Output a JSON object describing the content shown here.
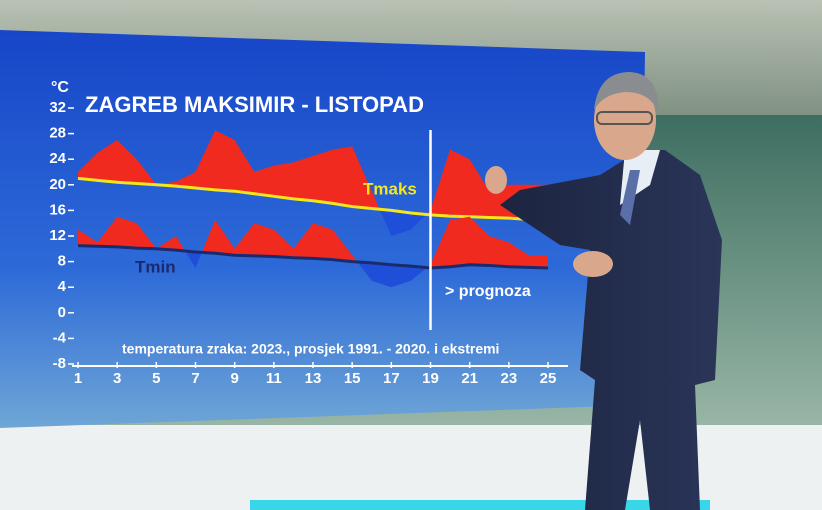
{
  "chart_data": {
    "type": "line",
    "title": "ZAGREB MAKSIMIR - LISTOPAD",
    "unit": "°C",
    "subtitle": "temperatura zraka: 2023., prosjek 1991. - 2020. i ekstremi",
    "forecast_label": "> prognoza",
    "forecast_from": 19,
    "x": [
      1,
      2,
      3,
      4,
      5,
      6,
      7,
      8,
      9,
      10,
      11,
      12,
      13,
      14,
      15,
      16,
      17,
      18,
      19,
      20,
      21,
      22,
      23,
      24,
      25
    ],
    "series": [
      {
        "name": "Tmaks",
        "color": "#f5e61e",
        "above_color": "#f02a1e",
        "below_color": "#1f4fd8",
        "values": [
          22,
          25,
          27,
          24,
          20,
          20.5,
          22,
          28.5,
          27,
          22,
          23,
          23.5,
          24.5,
          25.5,
          26,
          19,
          12,
          13,
          16,
          25.5,
          24,
          19,
          20,
          20,
          20
        ],
        "average": [
          21,
          20.7,
          20.4,
          20.2,
          20,
          19.8,
          19.5,
          19.2,
          19,
          18.6,
          18.2,
          17.8,
          17.5,
          17.1,
          16.6,
          16.3,
          16,
          15.6,
          15.3,
          15.1,
          15,
          14.9,
          14.8,
          14.6,
          14.5
        ]
      },
      {
        "name": "Tmin",
        "color": "#1a2a6e",
        "above_color": "#f02a1e",
        "below_color": "#1f4fd8",
        "values": [
          13,
          11,
          15,
          14,
          10,
          12,
          7,
          14.5,
          10,
          14,
          13,
          10,
          14,
          13,
          9,
          5,
          4,
          5,
          7.5,
          14.5,
          15,
          12,
          11,
          9,
          9
        ],
        "average": [
          10.5,
          10.4,
          10.3,
          10.1,
          10,
          9.8,
          9.5,
          9.3,
          9,
          8.9,
          8.8,
          8.6,
          8.5,
          8.3,
          8,
          7.8,
          7.5,
          7.3,
          7,
          7.2,
          7.5,
          7.4,
          7.2,
          7.1,
          7
        ]
      }
    ],
    "xlim": [
      1,
      25
    ],
    "xticks": [
      1,
      3,
      5,
      7,
      9,
      11,
      13,
      15,
      17,
      19,
      21,
      23,
      25
    ],
    "ylim": [
      -8,
      32
    ],
    "yticks": [
      -8,
      -4,
      0,
      4,
      8,
      12,
      16,
      20,
      24,
      28,
      32
    ]
  }
}
